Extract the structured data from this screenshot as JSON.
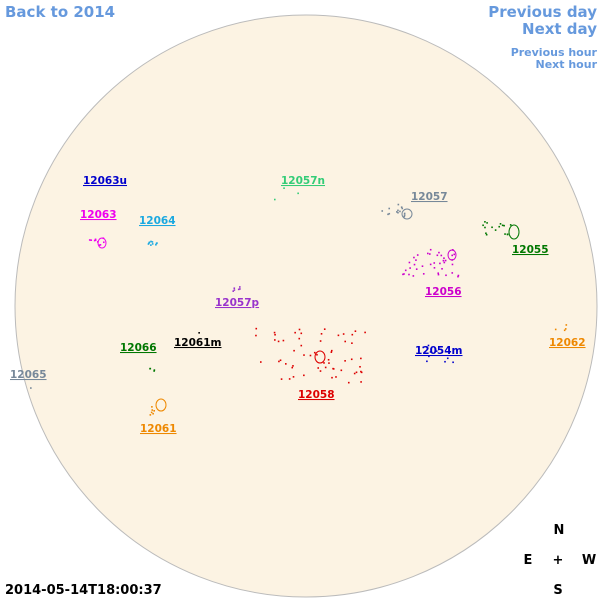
{
  "navigation": {
    "back": "Back to 2014",
    "previous_day": "Previous day",
    "next_day": "Next day",
    "previous_hour": "Previous hour",
    "next_hour": "Next hour"
  },
  "regions": [
    {
      "label": "12063u",
      "color": "#0000cc"
    },
    {
      "label": "12057n",
      "color": "#33cc77"
    },
    {
      "label": "12057",
      "color": "#778899"
    },
    {
      "label": "12063",
      "color": "#ee00ee"
    },
    {
      "label": "12064",
      "color": "#1aa8e0"
    },
    {
      "label": "12055",
      "color": "#007700"
    },
    {
      "label": "12056",
      "color": "#cc00cc"
    },
    {
      "label": "12057p",
      "color": "#9933cc"
    },
    {
      "label": "12062",
      "color": "#ee8800"
    },
    {
      "label": "12066",
      "color": "#007700"
    },
    {
      "label": "12061m",
      "color": "#000000"
    },
    {
      "label": "12054m",
      "color": "#0000cc"
    },
    {
      "label": "12065",
      "color": "#778899"
    },
    {
      "label": "12058",
      "color": "#dd0000"
    },
    {
      "label": "12061",
      "color": "#ee8800"
    }
  ],
  "timestamp": "2014-05-14T18:00:37",
  "compass": {
    "north": "N",
    "east": "E",
    "center": "+",
    "west": "W",
    "south": "S"
  }
}
